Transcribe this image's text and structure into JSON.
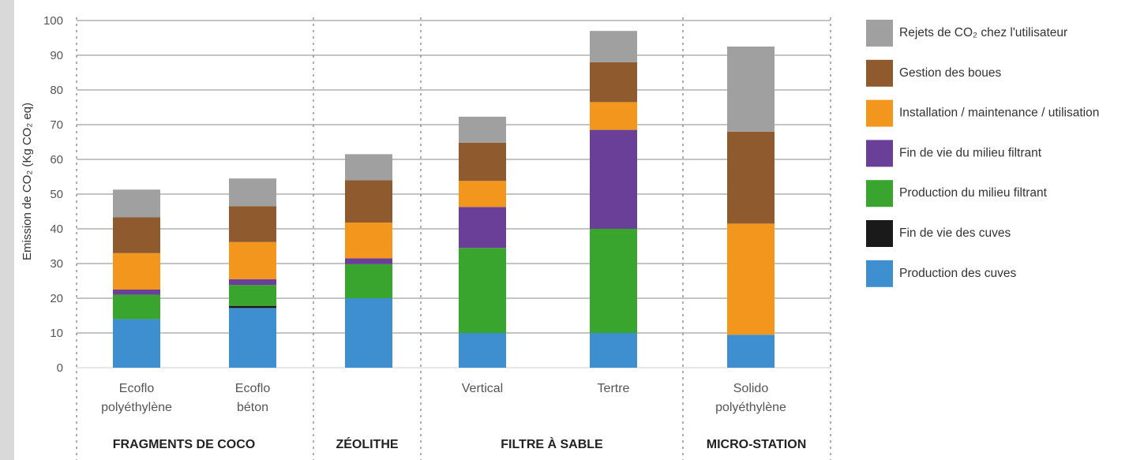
{
  "chart_data": {
    "type": "bar",
    "stacked": true,
    "title": "",
    "ylabel": "Emission de CO₂ (Kg CO₂ eq)",
    "xlabel": "",
    "ylim": [
      0,
      100
    ],
    "yticks": [
      0,
      10,
      20,
      30,
      40,
      50,
      60,
      70,
      80,
      90,
      100
    ],
    "grid": true,
    "legend_position": "right",
    "categories": [
      [
        "Ecoflo",
        "polyéthylène"
      ],
      [
        "Ecoflo",
        "béton"
      ],
      [
        ""
      ],
      [
        "Vertical"
      ],
      [
        "Tertre"
      ],
      [
        "Solido",
        "polyéthylène"
      ]
    ],
    "groups": [
      {
        "label": "FRAGMENTS DE COCO",
        "categories": [
          0,
          1
        ]
      },
      {
        "label": "ZÉOLITHE",
        "categories": [
          2
        ]
      },
      {
        "label": "FILTRE À SABLE",
        "categories": [
          3,
          4
        ]
      },
      {
        "label": "MICRO-STATION",
        "categories": [
          5
        ]
      }
    ],
    "series": [
      {
        "name": "Production des cuves",
        "color": "#3d8fcf",
        "values": [
          14,
          17.2,
          20,
          10,
          10,
          9.5
        ]
      },
      {
        "name": "Fin de vie des cuves",
        "color": "#1a1a1a",
        "values": [
          0,
          0.6,
          0,
          0,
          0,
          0
        ]
      },
      {
        "name": "Production du milieu filtrant",
        "color": "#3aa52e",
        "values": [
          7,
          6,
          9.8,
          24.5,
          30,
          0
        ]
      },
      {
        "name": "Fin de vie du milieu filtrant",
        "color": "#6a3f97",
        "values": [
          1.5,
          1.7,
          1.7,
          11.8,
          28.5,
          0
        ]
      },
      {
        "name": "Installation / maintenance / utilisation",
        "color": "#f2961e",
        "values": [
          10.5,
          10.7,
          10.3,
          7.5,
          8,
          32
        ]
      },
      {
        "name": "Gestion des boues",
        "color": "#8e5a2e",
        "values": [
          10.3,
          10.3,
          12.2,
          11,
          11.5,
          26.5
        ]
      },
      {
        "name": "Rejets de CO₂ chez l'utilisateur",
        "color": "#a0a0a0",
        "values": [
          8,
          8,
          7.5,
          7.5,
          9,
          24.5
        ]
      }
    ],
    "legend_order": [
      "Rejets de CO₂ chez l'utilisateur",
      "Gestion des boues",
      "Installation / maintenance / utilisation",
      "Fin de vie du milieu filtrant",
      "Production du milieu filtrant",
      "Fin de vie des cuves",
      "Production des cuves"
    ]
  }
}
